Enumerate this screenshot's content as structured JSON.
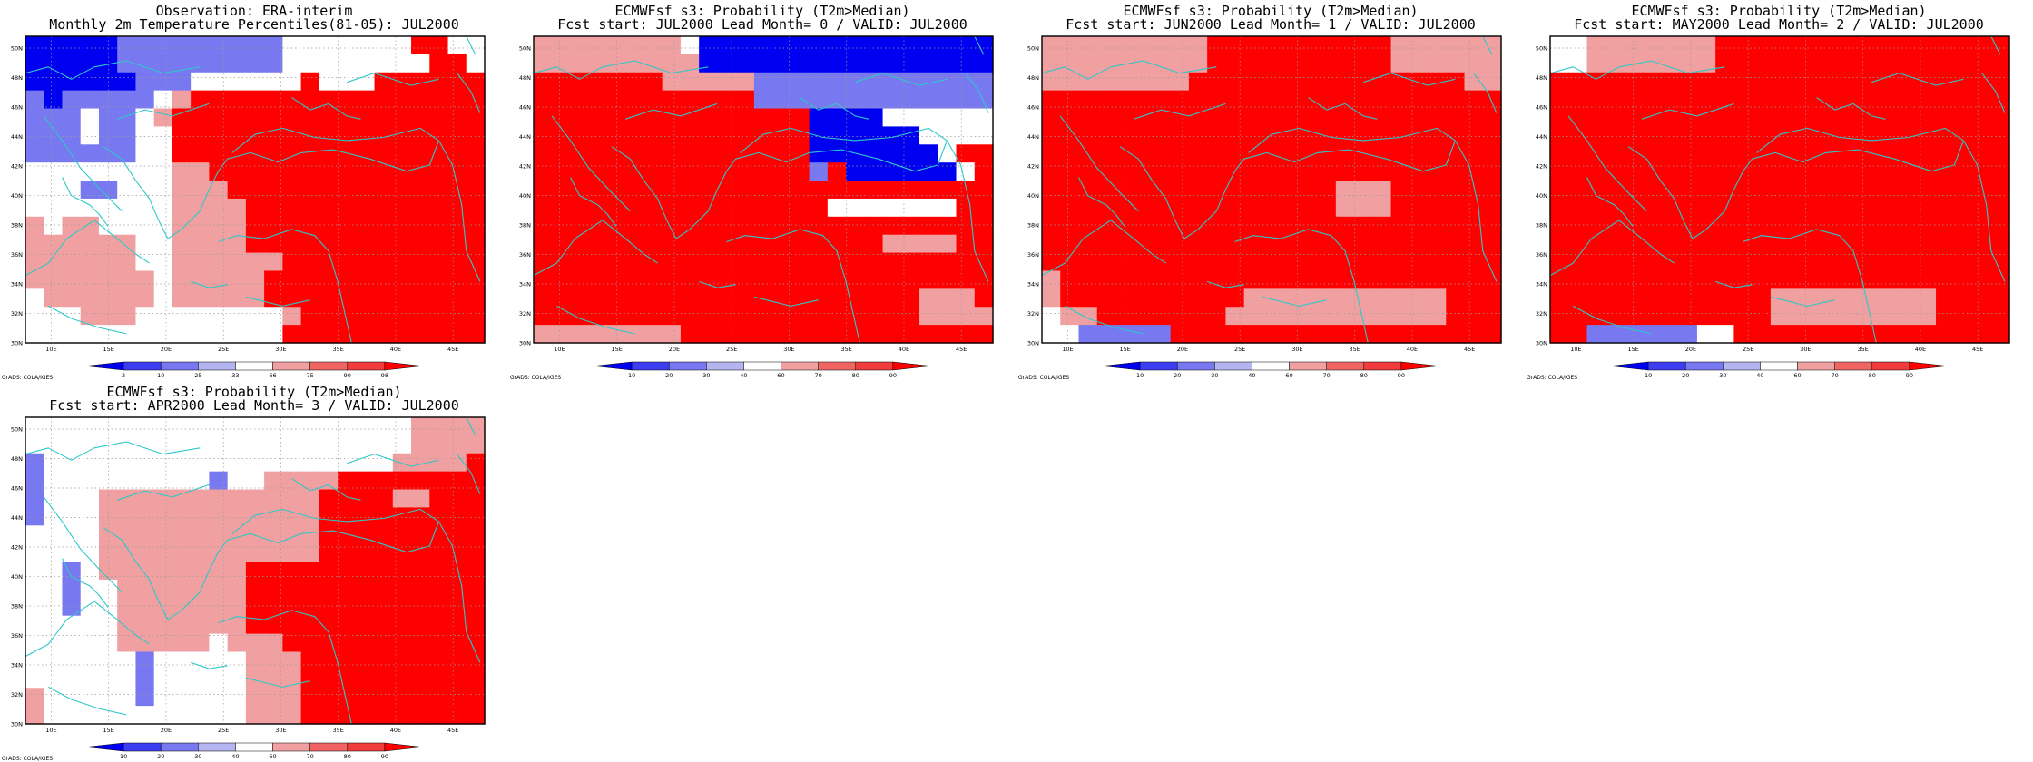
{
  "figure": {
    "lat_labels": [
      "30N",
      "32N",
      "34N",
      "36N",
      "38N",
      "40N",
      "42N",
      "44N",
      "46N",
      "48N",
      "50N"
    ],
    "lon_labels": [
      "10E",
      "15E",
      "20E",
      "25E",
      "30E",
      "35E",
      "40E",
      "45E"
    ],
    "credit": "GrADS: COLA/IGES",
    "grid_lines": true
  },
  "panels": [
    {
      "title1": "Observation: ERA-interim",
      "title2": "Monthly 2m Temperature Percentiles(81-05): JUL2000",
      "colorbar": {
        "labels": [
          "2",
          "10",
          "25",
          "33",
          "66",
          "75",
          "90",
          "98"
        ],
        "colors": [
          "#0000f0",
          "#3c3cf0",
          "#7878f0",
          "#b4b4f0",
          "#ffffff",
          "#f0a0a0",
          "#f06464",
          "#f03c3c",
          "#ff0000"
        ]
      },
      "grid": [
        "BBBBBbbbbbbbbb.......RR..",
        "BBBBBbbbbbbbbb........RR.",
        "BBBBBBbbb......R...RRRRRR",
        "bBbbbbb.LRRRRRRRRRRRRRRRR",
        "bbb.bb.LRRRRRRRRRRRRRRRRR",
        "bbb.bb..RRRRRRRRRRRRRRRRR",
        "bbbbbb..RRRRRRRRRRRRRRRRR",
        "........LLRRRRRRRRRRRRRRR",
        "...bb...LLLRRRRRRRRRRRRRR",
        "........LLLLRRRRRRRRRRRRR",
        "L.LL....LLLLRRRRRRRRRRRRR",
        "LLLLLL..LLLLRRRRRRRRRRRRR",
        "LLLLLL..LLLLLLRRRRRRRRRRR",
        "LLLLLLL.LLLLLRRRRRRRRRRRR",
        ".LLLLLL.LLLLLRRRRRRRRRRRR",
        "...LLL........LRRRRRRRRRR",
        "..............RRRRRRRRRRR"
      ]
    },
    {
      "title1": "ECMWFsf s3: Probability (T2m>Median)",
      "title2": "Fcst start: JUL2000   Lead Month= 0 / VALID: JUL2000",
      "colorbar": {
        "labels": [
          "10",
          "20",
          "30",
          "40",
          "60",
          "70",
          "80",
          "90"
        ],
        "colors": [
          "#0000f0",
          "#3c3cf0",
          "#7878f0",
          "#b4b4f0",
          "#ffffff",
          "#f0a0a0",
          "#f06464",
          "#f03c3c",
          "#ff0000"
        ]
      },
      "grid": [
        "LLLLLLLLlBBBBBBBBBBBBBBBB",
        "LLLLLLLLLBBBBBBBBBBBBBBBB",
        "RRRRRRRLLLLLbbbbbbbbbbbbb",
        "RRRRRRRRRRRRbbbbbbbbbbbbb",
        "RRRRRRRRRRRRRRRBBBB......",
        "RRRRRRRRRRRRRRRBBBBBB....",
        "RRRRRRRRRRRRRRRBBBBBBB.RR",
        "RRRRRRRRRRRRRRRbRBBBBBB.R",
        "RRRRRRRRRRRRRRRRRRRRRRRRR",
        "RRRRRRRRRRRRRRRR.......RR",
        "RRRRRRRRRRRRRRRRRRRRRRRRR",
        "RRRRRRRRRRRRRRRRRRRLLLLRR",
        "RRRRRRRRRRRRRRRRRRRRRRRRR",
        "RRRRRRRRRRRRRRRRRRRRRRRRR",
        "RRRRRRRRRRRRRRRRRRRRRLLLR",
        "RRRRRRRRRRRRRRRRRRRRRLLLL",
        "LLLLLLLLRRRRRRRRRRRRRRRRR"
      ]
    },
    {
      "title1": "ECMWFsf s3: Probability (T2m>Median)",
      "title2": "Fcst start: JUN2000   Lead Month= 1 / VALID: JUL2000",
      "colorbar": {
        "labels": [
          "10",
          "20",
          "30",
          "40",
          "60",
          "70",
          "80",
          "90"
        ],
        "colors": [
          "#0000f0",
          "#3c3cf0",
          "#7878f0",
          "#b4b4f0",
          "#ffffff",
          "#f0a0a0",
          "#f06464",
          "#f03c3c",
          "#ff0000"
        ]
      },
      "grid": [
        "LLLLLLLLLRRRRRRRRRRLLLLLL",
        "LLLLLLLLLRRRRRRRRRRLLLLLL",
        "LLLLLLLLRRRRRRRRRRRRRRRLL",
        "RRRRRRRRRRRRRRRRRRRRRRRRR",
        "RRRRRRRRRRRRRRRRRRRRRRRRR",
        "RRRRRRRRRRRRRRRRRRRRRRRRR",
        "RRRRRRRRRRRRRRRRRRRRRRRRR",
        "RRRRRRRRRRRRRRRRRRRRRRRRR",
        "RRRRRRRRRRRRRRRRLLLRRRRRR",
        "RRRRRRRRRRRRRRRRLLLRRRRRR",
        "RRRRRRRRRRRRRRRRRRRRRRRRR",
        "RRRRRRRRRRRRRRRRRRRRRRRRR",
        "RRRRRRRRRRRRRRRRRRRRRRRRR",
        "LRRRRRRRRRRRRRRRRRRRRRRRR",
        "LRRRRRRRRRRLLLLLLLLLLLRRR",
        ".LLRRRRRRRLLLLLLLLLLLLRRR",
        "..bbbbbRRRRRRRRRRRRRRRRRR"
      ]
    },
    {
      "title1": "ECMWFsf s3: Probability (T2m>Median)",
      "title2": "Fcst start: MAY2000   Lead Month= 2 / VALID: JUL2000",
      "colorbar": {
        "labels": [
          "10",
          "20",
          "30",
          "40",
          "60",
          "70",
          "80",
          "90"
        ],
        "colors": [
          "#0000f0",
          "#3c3cf0",
          "#7878f0",
          "#b4b4f0",
          "#ffffff",
          "#f0a0a0",
          "#f06464",
          "#f03c3c",
          "#ff0000"
        ]
      },
      "grid": [
        "..LLLLLLLRRRRRRRRRRRRRRRR",
        "..LLLLLLLRRRRRRRRRRRRRRRR",
        "RRRRRRRRRRRRRRRRRRRRRRRRR",
        "RRRRRRRRRRRRRRRRRRRRRRRRR",
        "RRRRRRRRRRRRRRRRRRRRRRRRR",
        "RRRRRRRRRRRRRRRRRRRRRRRRR",
        "RRRRRRRRRRRRRRRRRRRRRRRRR",
        "RRRRRRRRRRRRRRRRRRRRRRRRR",
        "RRRRRRRRRRRRRRRRRRRRRRRRR",
        "RRRRRRRRRRRRRRRRRRRRRRRRR",
        "RRRRRRRRRRRRRRRRRRRRRRRRR",
        "RRRRRRRRRRRRRRRRRRRRRRRRR",
        "RRRRRRRRRRRRRRRRRRRRRRRRR",
        "RRRRRRRRRRRRRRRRRRRRRRRRR",
        "RRRRRRRRRRRRLLLLLLLLLRRRR",
        "RRRRRRRRRRRRLLLLLLLLLRRRR",
        "RRbbbbbb..RRRRRRRRRRRRRRR"
      ]
    },
    {
      "title1": "ECMWFsf s3: Probability (T2m>Median)",
      "title2": "Fcst start: APR2000   Lead Month= 3 / VALID: JUL2000",
      "colorbar": {
        "labels": [
          "10",
          "20",
          "30",
          "40",
          "60",
          "70",
          "80",
          "90"
        ],
        "colors": [
          "#0000f0",
          "#3c3cf0",
          "#7878f0",
          "#b4b4f0",
          "#ffffff",
          "#f0a0a0",
          "#f06464",
          "#f03c3c",
          "#ff0000"
        ]
      },
      "grid": [
        ".....................LLLL",
        ".....................LLLL",
        "b...................LLLLR",
        "b.........b..LLLLRRRRRRRR",
        "b...LLLLLLLLLLLLRRRRLLRRR",
        "b...LLLLLLLLLLLLRRRRRRRRR",
        "....LLLLLLLLLLLLRRRRRRRRR",
        "....LLLLLLLLLLLLRRRRRRRRR",
        "..b.LLLLLLLLRRRRRRRRRRRRR",
        "..b..LLLLLLLRRRRRRRRRRRRR",
        "..b..LLLLLLLRRRRRRRRRRRRR",
        ".....LLLLLLLRRRRRRRRRRRRR",
        ".....LLLLL.LLLRRRRRRRRRRR",
        "......b.....LLLRRRRRRRRRR",
        "......b.....LLLRRRRRRRRRR",
        "L.....b.....LLLRRRRRRRRRR",
        "L...........LLLRRRRRRRRRR"
      ]
    }
  ]
}
